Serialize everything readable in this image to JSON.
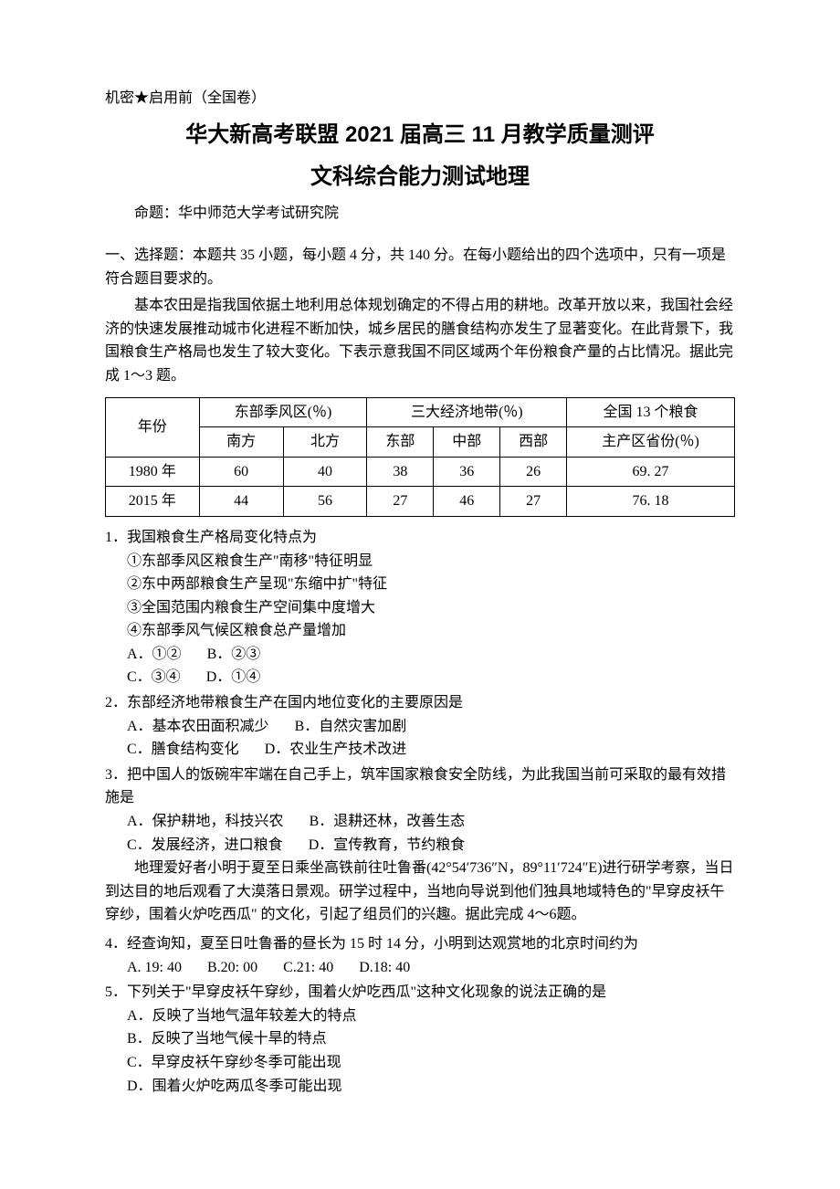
{
  "header": {
    "secret": "机密★启用前（全国卷）",
    "main_title": "华大新高考联盟 2021 届高三 11 月教学质量测评",
    "sub_title": "文科综合能力测试地理",
    "author": "命题：华中师范大学考试研究院"
  },
  "section1": {
    "header": "一、选择题：本题共 35 小题，每小题 4 分，共 140 分。在每小题给出的四个选项中，只有一项是符合题目要求的。",
    "passage1": "基本农田是指我国依据土地利用总体规划确定的不得占用的耕地。改革开放以来，我国社会经济的快速发展推动城市化进程不断加快，城乡居民的膳食结构亦发生了显著变化。在此背景下，我国粮食生产格局也发生了较大变化。下表示意我国不同区域两个年份粮食产量的占比情况。据此完成 1～3 题。"
  },
  "table": {
    "type": "table",
    "columns": [
      "年份",
      "南方",
      "北方",
      "东部",
      "中部",
      "西部",
      "主产区省份(％)"
    ],
    "header_group1": "东部季风区(％)",
    "header_group2": "三大经济地带(％)",
    "header_group3": "全国 13 个粮食",
    "header_year": "年份",
    "rows": [
      [
        "1980 年",
        "60",
        "40",
        "38",
        "36",
        "26",
        "69. 27"
      ],
      [
        "2015 年",
        "44",
        "56",
        "27",
        "46",
        "27",
        "76. 18"
      ]
    ],
    "border_color": "#000000",
    "background_color": "#ffffff"
  },
  "q1": {
    "stem": "1．我国粮食生产格局变化特点为",
    "items": [
      "①东部季风区粮食生产\"南移\"特征明显",
      "②东中两部粮食生产呈现\"东缩中扩\"特征",
      "③全国范围内粮食生产空间集中度增大",
      "④东部季风气候区粮食总产量增加"
    ],
    "options_line1_a": "A．①②",
    "options_line1_b": "B．②③",
    "options_line2_c": "C．③④",
    "options_line2_d": "D．①④"
  },
  "q2": {
    "stem": "2．东部经济地带粮食生产在国内地位变化的主要原因是",
    "opt_a": "A．基本农田面积减少",
    "opt_b": "B．自然灾害加剧",
    "opt_c": "C．膳食结构变化",
    "opt_d": "D．农业生产技术改进"
  },
  "q3": {
    "stem": "3．把中国人的饭碗牢牢端在自己手上，筑牢国家粮食安全防线，为此我国当前可采取的最有效措施是",
    "opt_a": "A．保护耕地，科技兴农",
    "opt_b": "B．退耕还林，改善生态",
    "opt_c": "C．发展经济，进口粮食",
    "opt_d": "D．宣传教育，节约粮食"
  },
  "passage2": "地理爱好者小明于夏至日乘坐高铁前往吐鲁番(42°54′736″N，89°11′724″E)进行研学考察，当日到达目的地后观看了大漠落日景观。研学过程中，当地向导说到他们独具地域特色的\"早穿皮袄午穿纱，围着火炉吃西瓜\" 的文化，引起了组员们的兴趣。据此完成 4～6题。",
  "q4": {
    "stem": "4．经查询知，夏至日吐鲁番的昼长为 15 时 14 分，小明到达观赏地的北京时间约为",
    "opt_a": "A. 19: 40",
    "opt_b": "B.20: 00",
    "opt_c": "C.21: 40",
    "opt_d": "D.18: 40"
  },
  "q5": {
    "stem": "5．下列关于\"早穿皮袄午穿纱，围着火炉吃西瓜\"这种文化现象的说法正确的是",
    "opt_a": "A．反映了当地气温年较差大的特点",
    "opt_b": "B．反映了当地气候十旱的特点",
    "opt_c": "C．早穿皮袄午穿纱冬季可能出现",
    "opt_d": "D．围着火炉吃两瓜冬季可能出现"
  }
}
